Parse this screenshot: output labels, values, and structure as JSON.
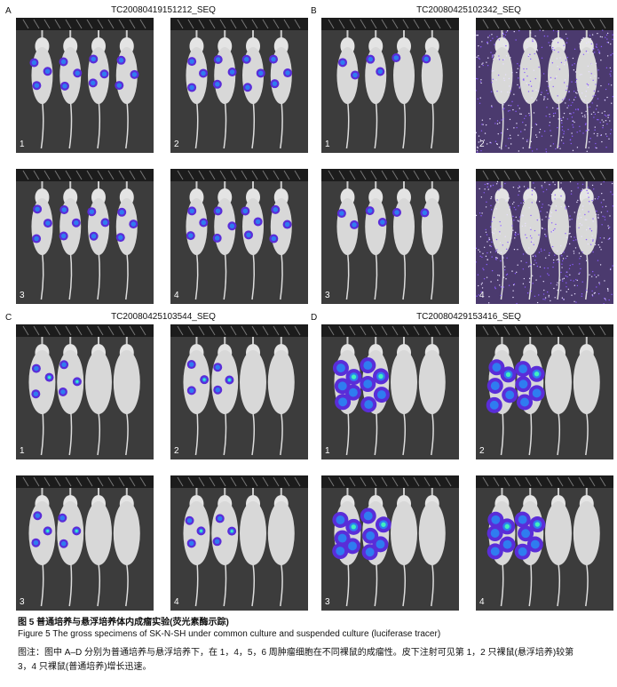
{
  "panels": [
    {
      "letter": "A",
      "title": "TC20080419151212_SEQ",
      "images": [
        "1",
        "2",
        "3",
        "4"
      ]
    },
    {
      "letter": "B",
      "title": "TC20080425102342_SEQ",
      "images": [
        "1",
        "2",
        "3",
        "4"
      ]
    },
    {
      "letter": "C",
      "title": "TC20080425103544_SEQ",
      "images": [
        "1",
        "2",
        "3",
        "4"
      ]
    },
    {
      "letter": "D",
      "title": "TC20080429153416_SEQ",
      "images": [
        "1",
        "2",
        "3",
        "4"
      ]
    }
  ],
  "caption": {
    "cn_title": "图 5    普通培养与悬浮培养体内成瘤实验(荧光素酶示踪)",
    "en_title": "Figure 5    The gross specimens of SK-N-SH under common culture and suspended culture (luciferase tracer)",
    "note": [
      "图注：图中 A–D 分别为普通培养与悬浮培养下，在 1，4，5，6 周肿瘤细胞在不同裸鼠的成瘤性。皮下注射可见第 1，2 只裸鼠(悬浮培养)较第",
      "3，4 只裸鼠(普通培养)增长迅速。"
    ]
  }
}
